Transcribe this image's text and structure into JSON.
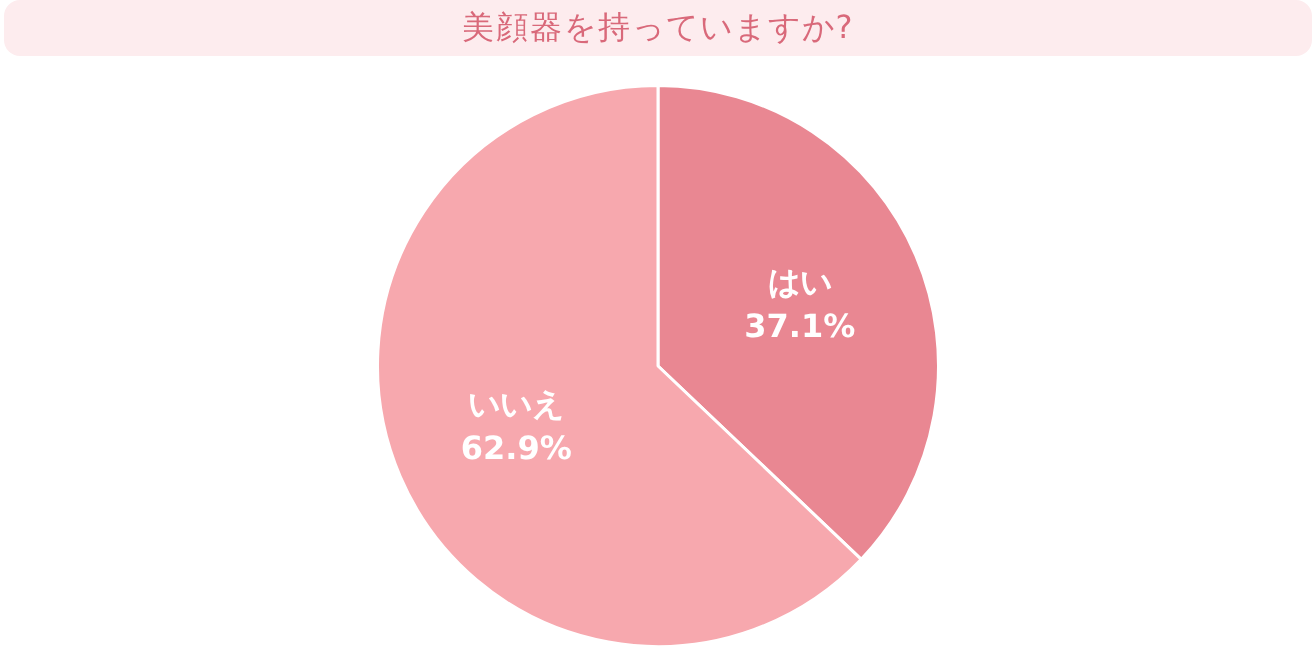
{
  "chart_data": {
    "type": "pie",
    "title": "美顔器を持っていますか?",
    "categories": [
      "はい",
      "いいえ"
    ],
    "values": [
      37.1,
      62.9
    ],
    "colors": [
      "#e98792",
      "#f7a8ae"
    ],
    "value_labels": [
      "37.1%",
      "62.9%"
    ],
    "legend": false
  }
}
